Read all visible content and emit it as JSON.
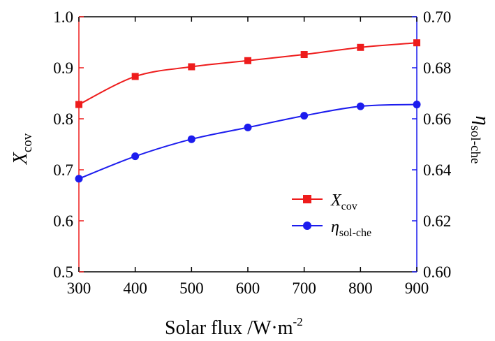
{
  "chart_data": {
    "type": "line",
    "xlabel": "Solar flux /W·m",
    "xlabel_sup": "-2",
    "ylabel_left_main": "X",
    "ylabel_left_sub": "cov",
    "ylabel_right_main": "η",
    "ylabel_right_sub": "sol-che",
    "xlim": [
      300,
      900
    ],
    "ylim_left": [
      0.5,
      1.0
    ],
    "ylim_right": [
      0.6,
      0.7
    ],
    "x_ticks": [
      300,
      400,
      500,
      600,
      700,
      800,
      900
    ],
    "x_tick_labels": [
      "300",
      "400",
      "500",
      "600",
      "700",
      "800",
      "900"
    ],
    "y_left_ticks": [
      0.5,
      0.6,
      0.7,
      0.8,
      0.9,
      1.0
    ],
    "y_left_tick_labels": [
      "0.5",
      "0.6",
      "0.7",
      "0.8",
      "0.9",
      "1.0"
    ],
    "y_right_ticks": [
      0.6,
      0.62,
      0.64,
      0.66,
      0.68,
      0.7
    ],
    "y_right_tick_labels": [
      "0.60",
      "0.62",
      "0.64",
      "0.66",
      "0.68",
      "0.70"
    ],
    "grid": false,
    "legend_position": "lower-right",
    "series": [
      {
        "name_main": "X",
        "name_sub": "cov",
        "axis": "left",
        "color": "#ee1c1c",
        "marker": "square",
        "x": [
          300,
          400,
          500,
          600,
          700,
          800,
          900
        ],
        "values": [
          0.828,
          0.883,
          0.902,
          0.914,
          0.926,
          0.94,
          0.949
        ]
      },
      {
        "name_main": "η",
        "name_sub": "sol-che",
        "axis": "right",
        "color": "#1c1cee",
        "marker": "circle",
        "x": [
          300,
          400,
          500,
          600,
          700,
          800,
          900
        ],
        "values": [
          0.6365,
          0.6453,
          0.652,
          0.6566,
          0.6612,
          0.6649,
          0.6656
        ]
      }
    ]
  },
  "colors": {
    "left_axis": "#ee1c1c",
    "right_axis": "#1c1cee",
    "axis": "#000000"
  }
}
